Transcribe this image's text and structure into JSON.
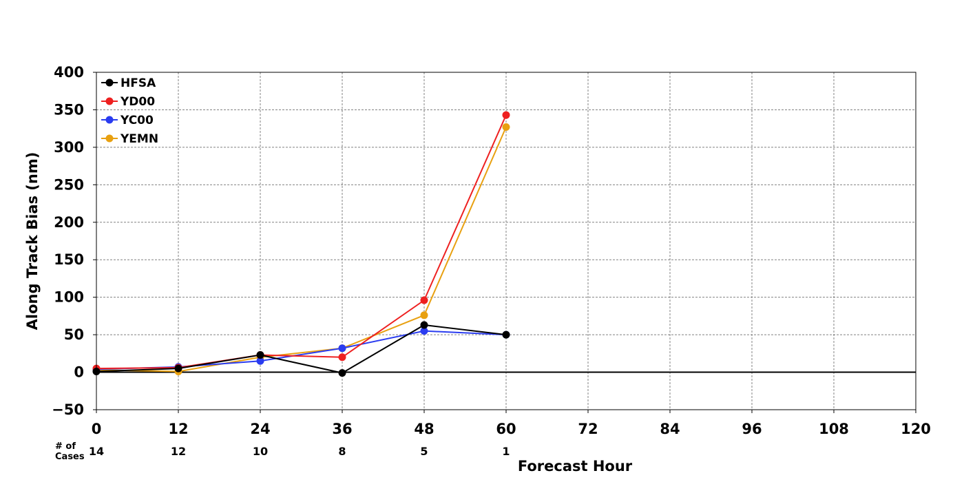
{
  "chart_data": {
    "type": "line",
    "title": "",
    "xlabel": "Forecast Hour",
    "ylabel": "Along Track Bias (nm)",
    "xlim": [
      0,
      120
    ],
    "ylim": [
      -50,
      400
    ],
    "x_ticks": [
      0,
      12,
      24,
      36,
      48,
      60,
      72,
      84,
      96,
      108,
      120
    ],
    "x_tick_labels": [
      "0",
      "12",
      "24",
      "36",
      "48",
      "60",
      "72",
      "84",
      "96",
      "108",
      "120"
    ],
    "y_ticks": [
      -50,
      0,
      50,
      100,
      150,
      200,
      250,
      300,
      350,
      400
    ],
    "y_tick_labels": [
      "−50",
      "0",
      "50",
      "100",
      "150",
      "200",
      "250",
      "300",
      "350",
      "400"
    ],
    "grid": true,
    "zero_line": true,
    "legend_position": "top-left",
    "cases_label": "# of\nCases",
    "cases": [
      {
        "x": 0,
        "count": "14"
      },
      {
        "x": 12,
        "count": "12"
      },
      {
        "x": 24,
        "count": "10"
      },
      {
        "x": 36,
        "count": "8"
      },
      {
        "x": 48,
        "count": "5"
      },
      {
        "x": 60,
        "count": "1"
      }
    ],
    "series": [
      {
        "name": "YEMN",
        "color": "#e8a010",
        "x": [
          0,
          12,
          24,
          36,
          48,
          60
        ],
        "values": [
          3,
          1,
          20,
          32,
          76,
          327
        ]
      },
      {
        "name": "YC00",
        "color": "#2a3cf0",
        "x": [
          0,
          12,
          24,
          36,
          48,
          60
        ],
        "values": [
          4,
          7,
          15,
          32,
          55,
          50
        ]
      },
      {
        "name": "YD00",
        "color": "#ee2020",
        "x": [
          0,
          12,
          24,
          36,
          48,
          60
        ],
        "values": [
          5,
          6,
          23,
          20,
          96,
          343
        ]
      },
      {
        "name": "HFSA",
        "color": "#000000",
        "x": [
          0,
          12,
          24,
          36,
          48,
          60
        ],
        "values": [
          1,
          5,
          23,
          -1,
          63,
          50
        ]
      }
    ],
    "legend_order": [
      "HFSA",
      "YD00",
      "YC00",
      "YEMN"
    ]
  }
}
